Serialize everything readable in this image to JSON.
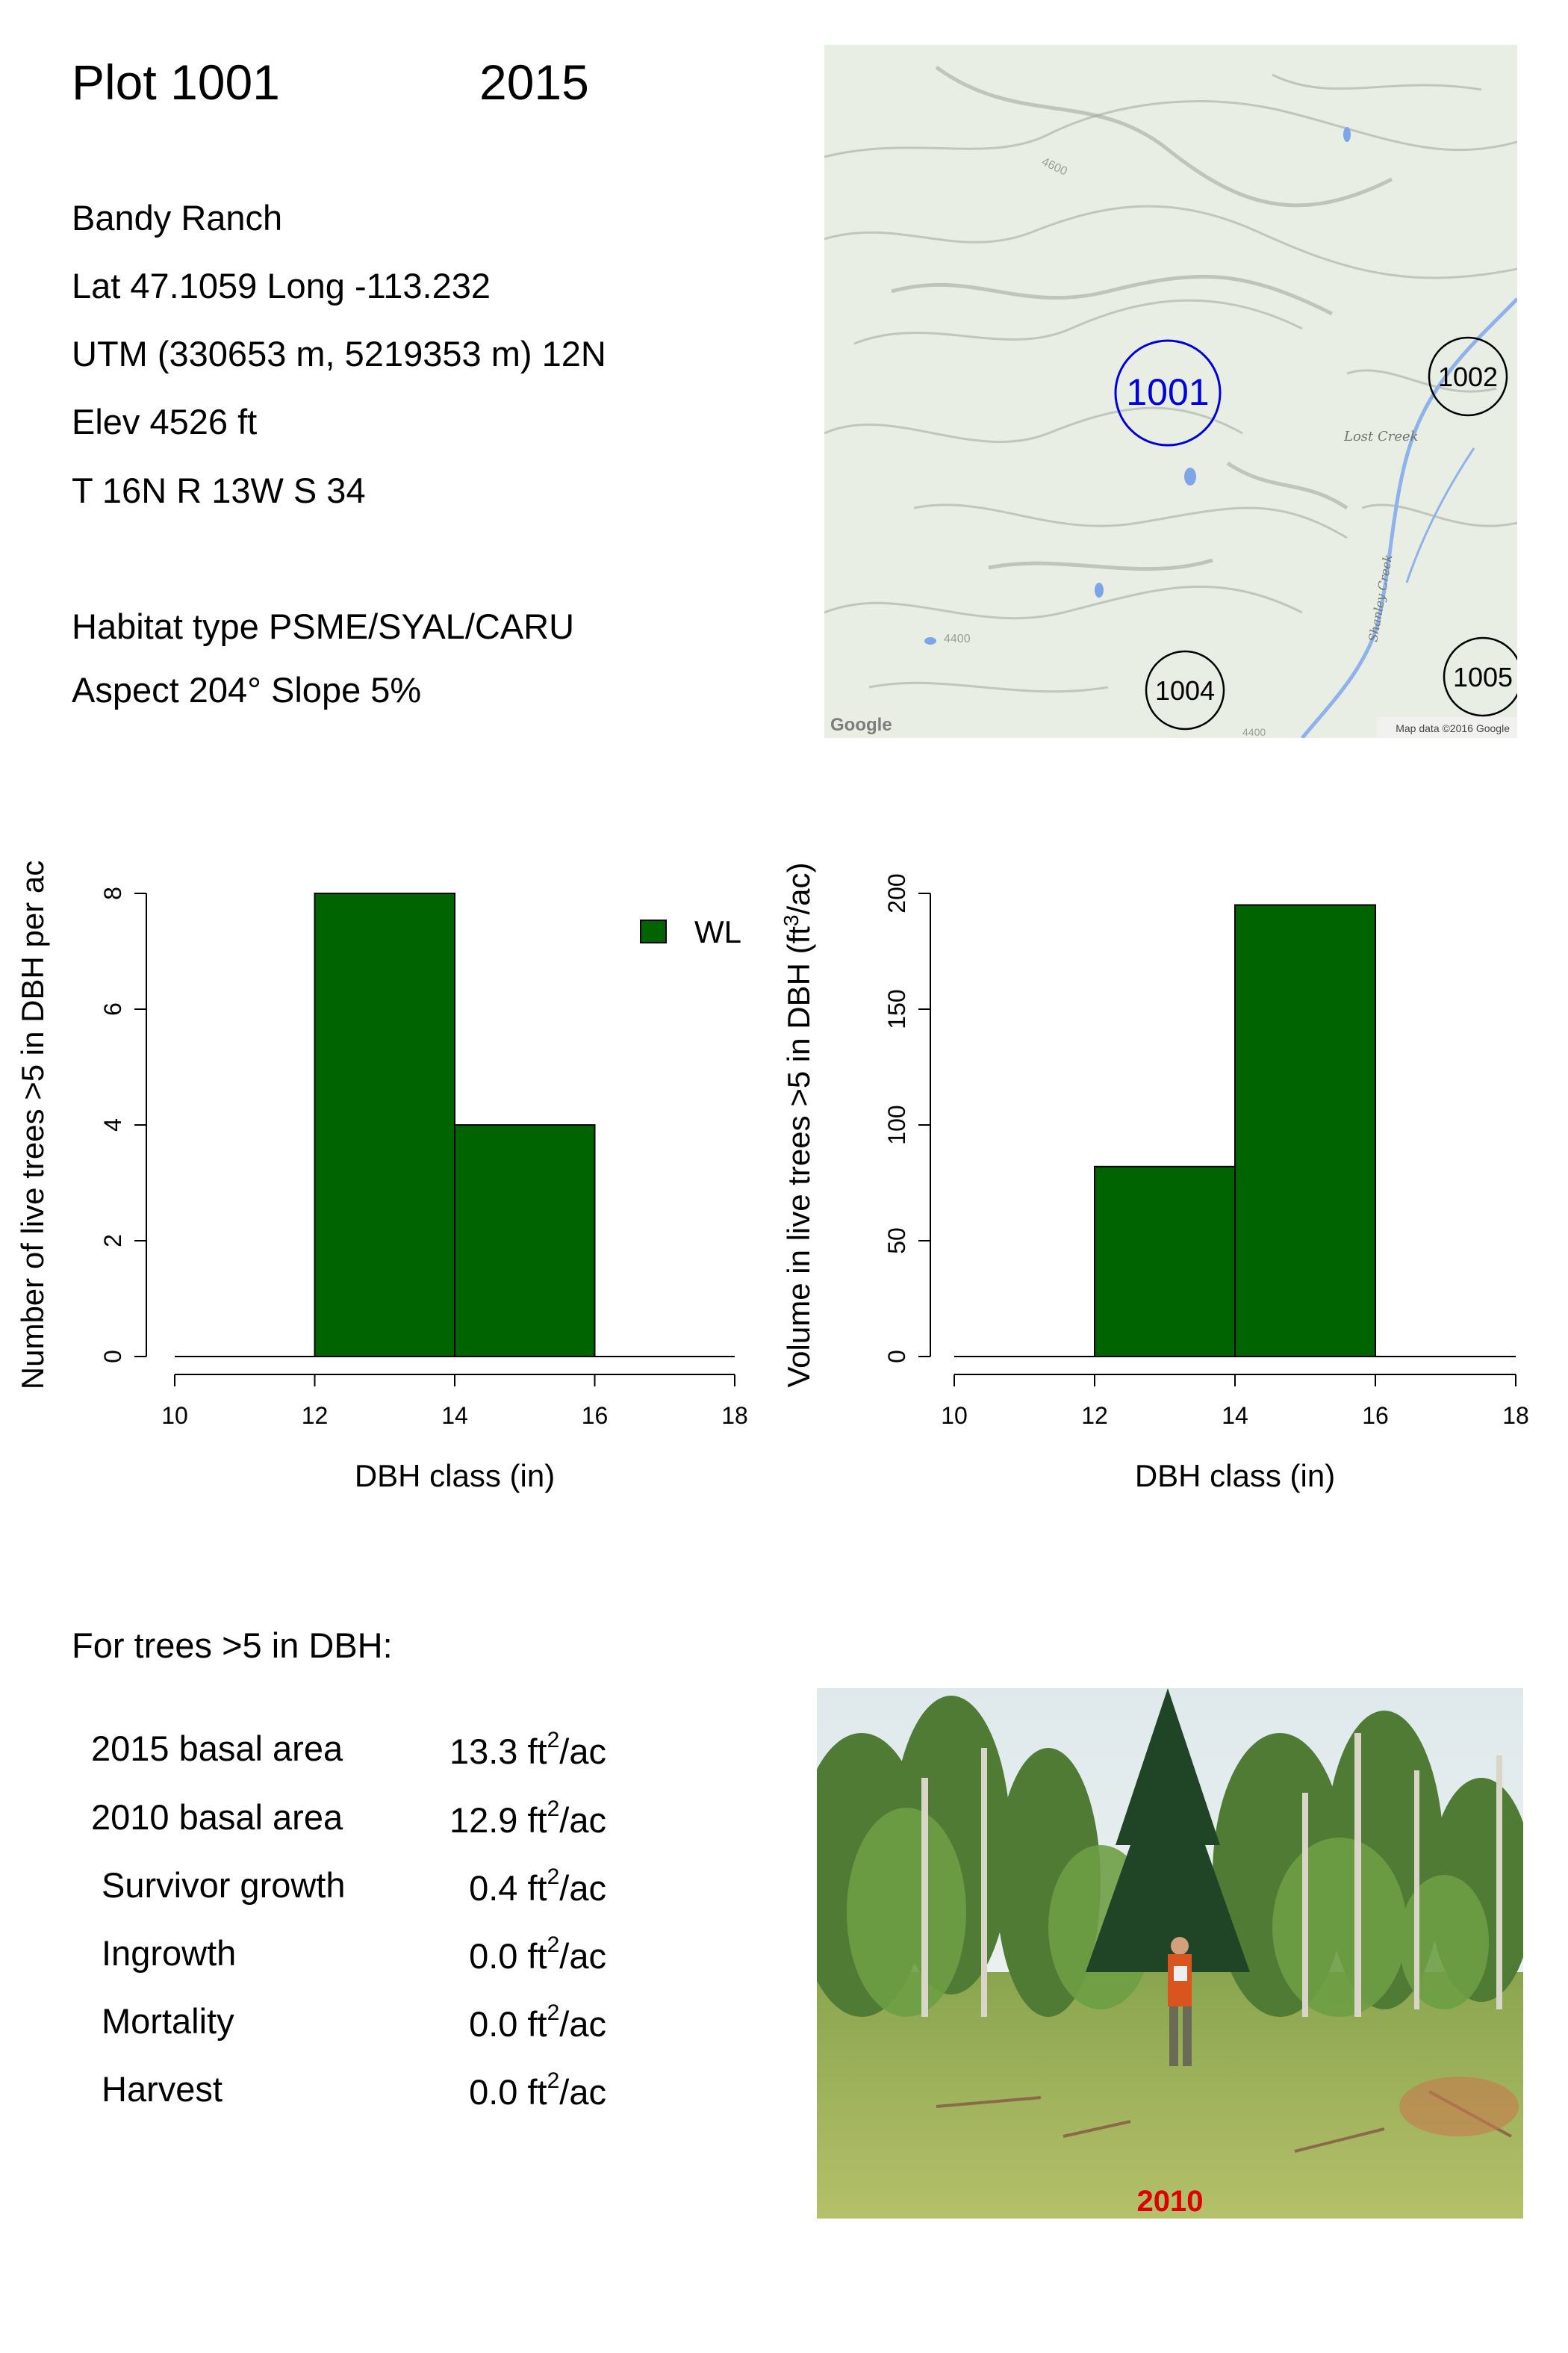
{
  "header": {
    "plot_label": "Plot 1001",
    "year": "2015"
  },
  "site": {
    "ranch": "Bandy Ranch",
    "latlong": "Lat 47.1059 Long -113.232",
    "utm": "UTM (330653 m, 5219353 m)  12N",
    "elev": "Elev 4526 ft",
    "trs": "T 16N  R 13W  S 34",
    "habitat": "Habitat type PSME/SYAL/CARU",
    "aspect": "Aspect 204° Slope 5%"
  },
  "map": {
    "plots": [
      {
        "id": "1001",
        "highlight": true
      },
      {
        "id": "1002",
        "highlight": false
      },
      {
        "id": "1004",
        "highlight": false
      },
      {
        "id": "1005",
        "highlight": false
      }
    ],
    "labels": {
      "lost_creek": "Lost Creek",
      "shanley_creek": "Shanley Creek",
      "contour_a": "4600",
      "contour_b": "4400",
      "contour_c": "4400"
    },
    "google_logo": "Google",
    "attribution": "Map data ©2016 Google",
    "colors": {
      "terrain": "#e8ede3",
      "water": "#7ea6e6",
      "highlight": "#0000dd"
    }
  },
  "chart_data": [
    {
      "type": "bar",
      "xlabel": "DBH class (in)",
      "ylabel": "Number of live trees >5 in DBH per ac",
      "xlim": [
        10,
        18
      ],
      "ylim": [
        0,
        8
      ],
      "xticks": [
        10,
        12,
        14,
        16,
        18
      ],
      "yticks": [
        0,
        2,
        4,
        6,
        8
      ],
      "bins": [
        [
          10,
          12
        ],
        [
          12,
          14
        ],
        [
          14,
          16
        ],
        [
          16,
          18
        ]
      ],
      "series": [
        {
          "name": "WL",
          "values": [
            0,
            8,
            4,
            0
          ],
          "color": "#006400"
        }
      ],
      "legend": "top-right"
    },
    {
      "type": "bar",
      "xlabel": "DBH class (in)",
      "ylabel_main": "Volume in live trees >5 in DBH (ft",
      "ylabel_sup": "3",
      "ylabel_end": "/ac)",
      "xlim": [
        10,
        18
      ],
      "ylim": [
        0,
        200
      ],
      "xticks": [
        10,
        12,
        14,
        16,
        18
      ],
      "yticks": [
        0,
        50,
        100,
        150,
        200
      ],
      "bins": [
        [
          10,
          12
        ],
        [
          12,
          14
        ],
        [
          14,
          16
        ],
        [
          16,
          18
        ]
      ],
      "series": [
        {
          "values": [
            0,
            82,
            195,
            0
          ],
          "color": "#006400"
        }
      ]
    }
  ],
  "stats": {
    "heading": "For trees >5 in DBH:",
    "unit_base": "ft",
    "unit_sup": "2",
    "unit_end": "/ac",
    "rows": [
      {
        "label": "2015 basal area",
        "value": "13.3"
      },
      {
        "label": "2010 basal area",
        "value": "12.9"
      },
      {
        "label": "Survivor growth",
        "value": "0.4"
      },
      {
        "label": "Ingrowth",
        "value": "0.0"
      },
      {
        "label": "Mortality",
        "value": "0.0"
      },
      {
        "label": "Harvest",
        "value": "0.0"
      }
    ]
  },
  "photo": {
    "year_label": "2010",
    "year_color": "#dd0000"
  }
}
